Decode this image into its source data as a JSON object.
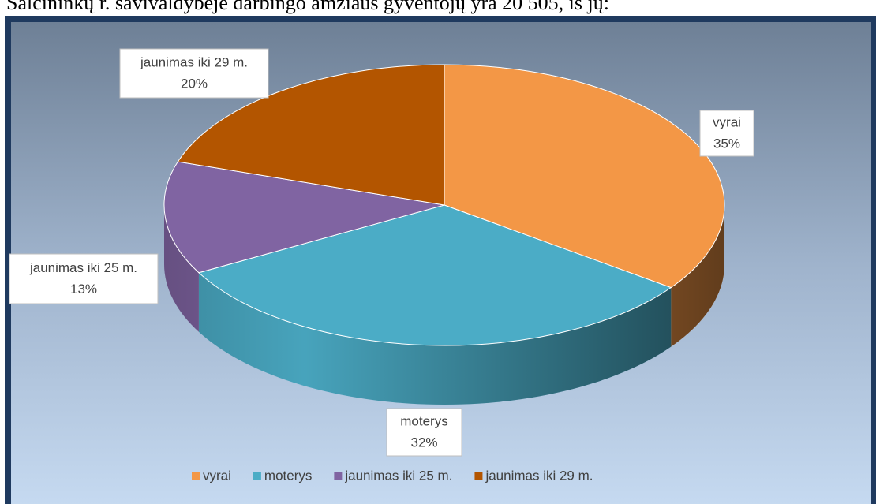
{
  "header": {
    "text": "Šalčininkų r. savivaldybėje darbingo amžiaus gyventojų yra 20 505, iš jų:"
  },
  "chart_data": {
    "type": "pie",
    "categories": [
      "vyrai",
      "moterys",
      "jaunimas iki 25 m.",
      "jaunimas iki 29 m."
    ],
    "values": [
      35,
      32,
      13,
      20
    ],
    "value_labels": [
      "35%",
      "32%",
      "13%",
      "20%"
    ],
    "colors": [
      "#f39746",
      "#4bacc6",
      "#8064a2",
      "#b35500"
    ],
    "legend": "bottom"
  }
}
